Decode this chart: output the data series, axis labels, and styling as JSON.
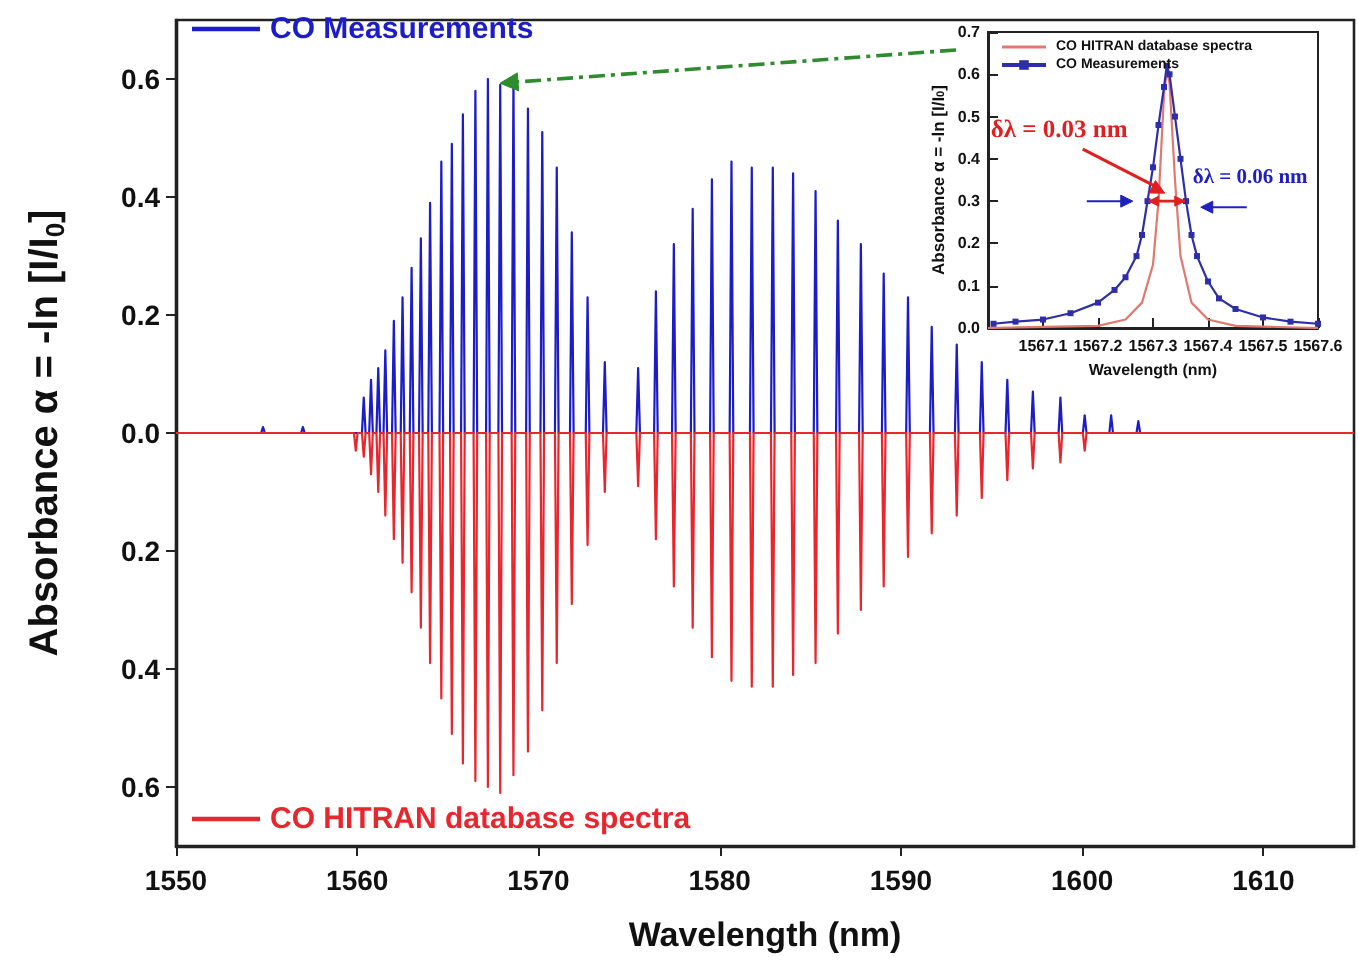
{
  "chart_data": [
    {
      "type": "line",
      "xlabel": "Wavelength (nm)",
      "ylabel": "Absorbance α = -ln [I/I$_{0}$]",
      "xlim": [
        1550,
        1615
      ],
      "xticks": [
        1550,
        1560,
        1570,
        1580,
        1590,
        1600,
        1610
      ],
      "ylim": [
        -0.7,
        0.7
      ],
      "yticks": [
        {
          "value": -0.6,
          "label": "0.6"
        },
        {
          "value": -0.4,
          "label": "0.4"
        },
        {
          "value": -0.2,
          "label": "0.2"
        },
        {
          "value": 0,
          "label": "0.0"
        },
        0.2,
        0.4,
        0.6
      ],
      "legend": "left",
      "marker": "none",
      "line_style": "solid",
      "series": [
        {
          "name": "CO Measurements",
          "color": "#1c1cc8",
          "x": [
            1550,
            1554.7,
            1554.8,
            1554.9,
            1556.9,
            1557.0,
            1557.1,
            1560.26,
            1560.36,
            1560.46,
            1560.66,
            1560.76,
            1560.86,
            1561.06,
            1561.16,
            1561.26,
            1561.45,
            1561.55,
            1561.65,
            1561.92,
            1562.02,
            1562.12,
            1562.4,
            1562.5,
            1562.6,
            1562.9,
            1563.0,
            1563.1,
            1563.41,
            1563.51,
            1563.61,
            1563.92,
            1564.02,
            1564.12,
            1564.54,
            1564.64,
            1564.74,
            1565.12,
            1565.22,
            1565.32,
            1565.73,
            1565.83,
            1565.93,
            1566.42,
            1566.52,
            1566.62,
            1567.11,
            1567.21,
            1567.31,
            1567.79,
            1567.89,
            1567.99,
            1568.52,
            1568.62,
            1568.72,
            1569.32,
            1569.42,
            1569.52,
            1570.11,
            1570.21,
            1570.31,
            1570.91,
            1571.01,
            1571.11,
            1571.74,
            1571.84,
            1571.94,
            1572.61,
            1572.71,
            1572.81,
            1573.56,
            1573.66,
            1573.76,
            1575.4,
            1575.5,
            1575.6,
            1576.38,
            1576.48,
            1576.58,
            1577.37,
            1577.47,
            1577.57,
            1578.41,
            1578.51,
            1578.61,
            1579.47,
            1579.57,
            1579.67,
            1580.55,
            1580.65,
            1580.75,
            1581.67,
            1581.77,
            1581.87,
            1582.83,
            1582.93,
            1583.03,
            1583.95,
            1584.05,
            1584.15,
            1585.19,
            1585.29,
            1585.39,
            1586.42,
            1586.52,
            1586.62,
            1587.69,
            1587.79,
            1587.89,
            1588.95,
            1589.05,
            1589.15,
            1590.29,
            1590.39,
            1590.49,
            1591.6,
            1591.7,
            1591.8,
            1592.98,
            1593.08,
            1593.18,
            1594.36,
            1594.46,
            1594.56,
            1595.77,
            1595.87,
            1595.97,
            1597.18,
            1597.28,
            1597.38,
            1598.7,
            1598.8,
            1598.9,
            1600.04,
            1600.14,
            1600.24,
            1601.5,
            1601.6,
            1601.7,
            1603.0,
            1603.1,
            1603.2,
            1615
          ],
          "values": [
            0,
            0,
            0.01,
            0,
            0,
            0.01,
            0,
            0,
            0.06,
            0,
            0,
            0.09,
            0,
            0,
            0.11,
            0,
            0,
            0.14,
            0,
            0,
            0.19,
            0,
            0,
            0.23,
            0,
            0,
            0.28,
            0,
            0,
            0.33,
            0,
            0,
            0.39,
            0,
            0,
            0.46,
            0,
            0,
            0.49,
            0,
            0,
            0.54,
            0,
            0,
            0.58,
            0,
            0,
            0.6,
            0,
            0,
            0.59,
            0,
            0,
            0.6,
            0,
            0,
            0.55,
            0,
            0,
            0.51,
            0,
            0,
            0.45,
            0,
            0,
            0.34,
            0,
            0,
            0.23,
            0,
            0,
            0.12,
            0,
            0,
            0.11,
            0,
            0,
            0.24,
            0,
            0,
            0.32,
            0,
            0,
            0.38,
            0,
            0,
            0.43,
            0,
            0,
            0.46,
            0,
            0,
            0.45,
            0,
            0,
            0.45,
            0,
            0,
            0.44,
            0,
            0,
            0.41,
            0,
            0,
            0.36,
            0,
            0,
            0.32,
            0,
            0,
            0.27,
            0,
            0,
            0.23,
            0,
            0,
            0.18,
            0,
            0,
            0.15,
            0,
            0,
            0.12,
            0,
            0,
            0.09,
            0,
            0,
            0.07,
            0,
            0,
            0.06,
            0,
            0,
            0.03,
            0,
            0,
            0.03,
            0,
            0,
            0.02,
            0,
            0
          ]
        },
        {
          "name": "CO HITRAN database spectra",
          "color": "#e8262e",
          "x": [
            1550,
            1559.82,
            1559.92,
            1560.02,
            1560.26,
            1560.36,
            1560.46,
            1560.66,
            1560.76,
            1560.86,
            1561.06,
            1561.16,
            1561.26,
            1561.45,
            1561.55,
            1561.65,
            1561.92,
            1562.02,
            1562.12,
            1562.4,
            1562.5,
            1562.6,
            1562.9,
            1563.0,
            1563.1,
            1563.41,
            1563.51,
            1563.61,
            1563.92,
            1564.02,
            1564.12,
            1564.54,
            1564.64,
            1564.74,
            1565.12,
            1565.22,
            1565.32,
            1565.73,
            1565.83,
            1565.93,
            1566.42,
            1566.52,
            1566.62,
            1567.11,
            1567.21,
            1567.31,
            1567.79,
            1567.89,
            1567.99,
            1568.52,
            1568.62,
            1568.72,
            1569.32,
            1569.42,
            1569.52,
            1570.11,
            1570.21,
            1570.31,
            1570.91,
            1571.01,
            1571.11,
            1571.74,
            1571.84,
            1571.94,
            1572.61,
            1572.71,
            1572.81,
            1573.56,
            1573.66,
            1573.76,
            1575.4,
            1575.5,
            1575.6,
            1576.38,
            1576.48,
            1576.58,
            1577.37,
            1577.47,
            1577.57,
            1578.41,
            1578.51,
            1578.61,
            1579.47,
            1579.57,
            1579.67,
            1580.55,
            1580.65,
            1580.75,
            1581.67,
            1581.77,
            1581.87,
            1582.83,
            1582.93,
            1583.03,
            1583.95,
            1584.05,
            1584.15,
            1585.19,
            1585.29,
            1585.39,
            1586.42,
            1586.52,
            1586.62,
            1587.69,
            1587.79,
            1587.89,
            1588.95,
            1589.05,
            1589.15,
            1590.29,
            1590.39,
            1590.49,
            1591.6,
            1591.7,
            1591.8,
            1592.98,
            1593.08,
            1593.18,
            1594.36,
            1594.46,
            1594.56,
            1595.77,
            1595.87,
            1595.97,
            1597.18,
            1597.28,
            1597.38,
            1598.7,
            1598.8,
            1598.9,
            1600.04,
            1600.14,
            1600.24,
            1615
          ],
          "values": [
            0,
            0,
            -0.03,
            0,
            0,
            -0.04,
            0,
            0,
            -0.07,
            0,
            0,
            -0.1,
            0,
            0,
            -0.14,
            0,
            0,
            -0.18,
            0,
            0,
            -0.22,
            0,
            0,
            -0.27,
            0,
            0,
            -0.33,
            0,
            0,
            -0.39,
            0,
            0,
            -0.45,
            0,
            0,
            -0.51,
            0,
            0,
            -0.56,
            0,
            0,
            -0.59,
            0,
            0,
            -0.6,
            0,
            0,
            -0.61,
            0,
            0,
            -0.58,
            0,
            0,
            -0.54,
            0,
            0,
            -0.47,
            0,
            0,
            -0.39,
            0,
            0,
            -0.29,
            0,
            0,
            -0.19,
            0,
            0,
            -0.1,
            0,
            0,
            -0.09,
            0,
            0,
            -0.18,
            0,
            0,
            -0.26,
            0,
            0,
            -0.33,
            0,
            0,
            -0.38,
            0,
            0,
            -0.42,
            0,
            0,
            -0.43,
            0,
            0,
            -0.43,
            0,
            0,
            -0.41,
            0,
            0,
            -0.39,
            0,
            0,
            -0.34,
            0,
            0,
            -0.3,
            0,
            0,
            -0.26,
            0,
            0,
            -0.21,
            0,
            0,
            -0.17,
            0,
            0,
            -0.14,
            0,
            0,
            -0.11,
            0,
            0,
            -0.08,
            0,
            0,
            -0.06,
            0,
            0,
            -0.05,
            0,
            0,
            -0.03,
            0,
            0
          ]
        }
      ]
    },
    {
      "type": "line",
      "xlabel": "Wavelength (nm)",
      "ylabel": "Absorbance α = -ln [I/I$_{0}$]",
      "xlim": [
        1567.0,
        1567.6
      ],
      "xticks": [
        1567.1,
        1567.2,
        1567.3,
        1567.4,
        1567.5,
        1567.6
      ],
      "ylim": [
        0,
        0.7
      ],
      "yticks": [
        {
          "value": 0,
          "label": "0.0"
        },
        0.1,
        0.2,
        0.3,
        0.4,
        0.5,
        0.6,
        0.7
      ],
      "legend": "top left",
      "marker": "none",
      "line_style": "solid",
      "series": [
        {
          "name": "CO HITRAN database spectra",
          "color": "#e07a70",
          "x": [
            1567.0,
            1567.2,
            1567.25,
            1567.28,
            1567.3,
            1567.31,
            1567.32,
            1567.325,
            1567.33,
            1567.34,
            1567.35,
            1567.37,
            1567.4,
            1567.45,
            1567.6
          ],
          "values": [
            0,
            0.005,
            0.02,
            0.06,
            0.15,
            0.3,
            0.55,
            0.61,
            0.58,
            0.35,
            0.17,
            0.06,
            0.02,
            0.005,
            0
          ]
        },
        {
          "name": "CO Measurements",
          "color": "#2e2eaa",
          "marker": "square",
          "x": [
            1567.01,
            1567.05,
            1567.1,
            1567.15,
            1567.2,
            1567.23,
            1567.25,
            1567.27,
            1567.28,
            1567.29,
            1567.3,
            1567.31,
            1567.32,
            1567.325,
            1567.33,
            1567.34,
            1567.35,
            1567.36,
            1567.37,
            1567.38,
            1567.4,
            1567.42,
            1567.45,
            1567.5,
            1567.55,
            1567.6
          ],
          "values": [
            0.01,
            0.015,
            0.02,
            0.035,
            0.06,
            0.09,
            0.12,
            0.17,
            0.22,
            0.3,
            0.38,
            0.48,
            0.57,
            0.62,
            0.6,
            0.5,
            0.4,
            0.3,
            0.22,
            0.17,
            0.11,
            0.07,
            0.045,
            0.025,
            0.015,
            0.01
          ]
        }
      ],
      "annotations": [
        {
          "text": "δλ = 0.03 nm",
          "x": 1567.325,
          "y": 0.3
        },
        {
          "text": "δλ = 0.06 nm",
          "x": 1567.325,
          "y": 0.3
        }
      ]
    }
  ]
}
